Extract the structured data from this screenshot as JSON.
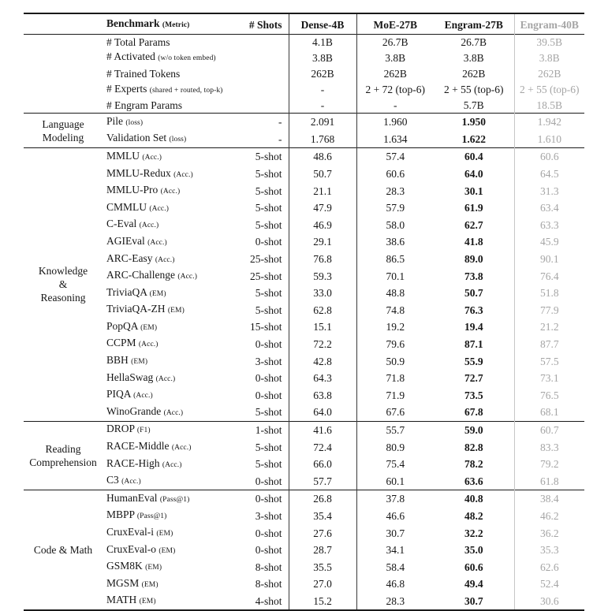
{
  "colors": {
    "text": "#161616",
    "muted_column": "#a5a5a5",
    "rule_dark": "#1a1a1a",
    "rule_light": "#c6c6c6"
  },
  "header": {
    "benchmark": "Benchmark",
    "benchmark_metric": "(Metric)",
    "shots": "# Shots",
    "models": [
      "Dense-4B",
      "MoE-27B",
      "Engram-27B",
      "Engram-40B"
    ]
  },
  "sections": [
    {
      "group_lines": [],
      "bold_engram27": false,
      "rows": [
        {
          "name": "# Total Params",
          "metric": "",
          "shots": "",
          "values": [
            "4.1B",
            "26.7B",
            "26.7B",
            "39.5B"
          ]
        },
        {
          "name": "# Activated",
          "metric": "(w/o token embed)",
          "shots": "",
          "values": [
            "3.8B",
            "3.8B",
            "3.8B",
            "3.8B"
          ]
        },
        {
          "name": "# Trained Tokens",
          "metric": "",
          "shots": "",
          "values": [
            "262B",
            "262B",
            "262B",
            "262B"
          ]
        },
        {
          "name": "# Experts",
          "metric": "(shared + routed, top-k)",
          "shots": "",
          "values": [
            "-",
            "2 + 72 (top-6)",
            "2 + 55 (top-6)",
            "2 + 55 (top-6)"
          ]
        },
        {
          "name": "# Engram Params",
          "metric": "",
          "shots": "",
          "values": [
            "-",
            "-",
            "5.7B",
            "18.5B"
          ]
        }
      ]
    },
    {
      "group_lines": [
        "Language",
        "Modeling"
      ],
      "bold_engram27": true,
      "rows": [
        {
          "name": "Pile",
          "metric": "(loss)",
          "shots": "-",
          "values": [
            "2.091",
            "1.960",
            "1.950",
            "1.942"
          ]
        },
        {
          "name": "Validation Set",
          "metric": "(loss)",
          "shots": "-",
          "values": [
            "1.768",
            "1.634",
            "1.622",
            "1.610"
          ]
        }
      ]
    },
    {
      "group_lines": [
        "Knowledge",
        "&",
        "Reasoning"
      ],
      "bold_engram27": true,
      "rows": [
        {
          "name": "MMLU",
          "metric": "(Acc.)",
          "shots": "5-shot",
          "values": [
            "48.6",
            "57.4",
            "60.4",
            "60.6"
          ]
        },
        {
          "name": "MMLU-Redux",
          "metric": "(Acc.)",
          "shots": "5-shot",
          "values": [
            "50.7",
            "60.6",
            "64.0",
            "64.5"
          ]
        },
        {
          "name": "MMLU-Pro",
          "metric": "(Acc.)",
          "shots": "5-shot",
          "values": [
            "21.1",
            "28.3",
            "30.1",
            "31.3"
          ]
        },
        {
          "name": "CMMLU",
          "metric": "(Acc.)",
          "shots": "5-shot",
          "values": [
            "47.9",
            "57.9",
            "61.9",
            "63.4"
          ]
        },
        {
          "name": "C-Eval",
          "metric": "(Acc.)",
          "shots": "5-shot",
          "values": [
            "46.9",
            "58.0",
            "62.7",
            "63.3"
          ]
        },
        {
          "name": "AGIEval",
          "metric": "(Acc.)",
          "shots": "0-shot",
          "values": [
            "29.1",
            "38.6",
            "41.8",
            "45.9"
          ]
        },
        {
          "name": "ARC-Easy",
          "metric": "(Acc.)",
          "shots": "25-shot",
          "values": [
            "76.8",
            "86.5",
            "89.0",
            "90.1"
          ]
        },
        {
          "name": "ARC-Challenge",
          "metric": "(Acc.)",
          "shots": "25-shot",
          "values": [
            "59.3",
            "70.1",
            "73.8",
            "76.4"
          ]
        },
        {
          "name": "TriviaQA",
          "metric": "(EM)",
          "shots": "5-shot",
          "values": [
            "33.0",
            "48.8",
            "50.7",
            "51.8"
          ]
        },
        {
          "name": "TriviaQA-ZH",
          "metric": "(EM)",
          "shots": "5-shot",
          "values": [
            "62.8",
            "74.8",
            "76.3",
            "77.9"
          ]
        },
        {
          "name": "PopQA",
          "metric": "(EM)",
          "shots": "15-shot",
          "values": [
            "15.1",
            "19.2",
            "19.4",
            "21.2"
          ]
        },
        {
          "name": "CCPM",
          "metric": "(Acc.)",
          "shots": "0-shot",
          "values": [
            "72.2",
            "79.6",
            "87.1",
            "87.7"
          ]
        },
        {
          "name": "BBH",
          "metric": "(EM)",
          "shots": "3-shot",
          "values": [
            "42.8",
            "50.9",
            "55.9",
            "57.5"
          ]
        },
        {
          "name": "HellaSwag",
          "metric": "(Acc.)",
          "shots": "0-shot",
          "values": [
            "64.3",
            "71.8",
            "72.7",
            "73.1"
          ]
        },
        {
          "name": "PIQA",
          "metric": "(Acc.)",
          "shots": "0-shot",
          "values": [
            "63.8",
            "71.9",
            "73.5",
            "76.5"
          ]
        },
        {
          "name": "WinoGrande",
          "metric": "(Acc.)",
          "shots": "5-shot",
          "values": [
            "64.0",
            "67.6",
            "67.8",
            "68.1"
          ]
        }
      ]
    },
    {
      "group_lines": [
        "Reading",
        "Comprehension"
      ],
      "bold_engram27": true,
      "rows": [
        {
          "name": "DROP",
          "metric": "(F1)",
          "shots": "1-shot",
          "values": [
            "41.6",
            "55.7",
            "59.0",
            "60.7"
          ]
        },
        {
          "name": "RACE-Middle",
          "metric": "(Acc.)",
          "shots": "5-shot",
          "values": [
            "72.4",
            "80.9",
            "82.8",
            "83.3"
          ]
        },
        {
          "name": "RACE-High",
          "metric": "(Acc.)",
          "shots": "5-shot",
          "values": [
            "66.0",
            "75.4",
            "78.2",
            "79.2"
          ]
        },
        {
          "name": "C3",
          "metric": "(Acc.)",
          "shots": "0-shot",
          "values": [
            "57.7",
            "60.1",
            "63.6",
            "61.8"
          ]
        }
      ]
    },
    {
      "group_lines": [
        "Code & Math"
      ],
      "bold_engram27": true,
      "rows": [
        {
          "name": "HumanEval",
          "metric": "(Pass@1)",
          "shots": "0-shot",
          "values": [
            "26.8",
            "37.8",
            "40.8",
            "38.4"
          ]
        },
        {
          "name": "MBPP",
          "metric": "(Pass@1)",
          "shots": "3-shot",
          "values": [
            "35.4",
            "46.6",
            "48.2",
            "46.2"
          ]
        },
        {
          "name": "CruxEval-i",
          "metric": "(EM)",
          "shots": "0-shot",
          "values": [
            "27.6",
            "30.7",
            "32.2",
            "36.2"
          ]
        },
        {
          "name": "CruxEval-o",
          "metric": "(EM)",
          "shots": "0-shot",
          "values": [
            "28.7",
            "34.1",
            "35.0",
            "35.3"
          ]
        },
        {
          "name": "GSM8K",
          "metric": "(EM)",
          "shots": "8-shot",
          "values": [
            "35.5",
            "58.4",
            "60.6",
            "62.6"
          ]
        },
        {
          "name": "MGSM",
          "metric": "(EM)",
          "shots": "8-shot",
          "values": [
            "27.0",
            "46.8",
            "49.4",
            "52.4"
          ]
        },
        {
          "name": "MATH",
          "metric": "(EM)",
          "shots": "4-shot",
          "values": [
            "15.2",
            "28.3",
            "30.7",
            "30.6"
          ]
        }
      ]
    }
  ]
}
